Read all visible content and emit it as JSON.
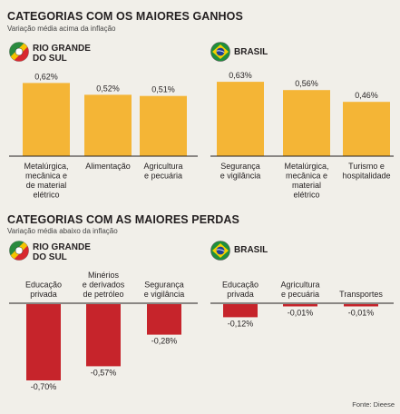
{
  "gains": {
    "title": "CATEGORIAS COM OS MAIORES GANHOS",
    "subtitle": "Variação média acima da inflação",
    "rs_region_line1": "RIO GRANDE",
    "rs_region_line2": "DO SUL",
    "br_region": "BRASIL"
  },
  "losses": {
    "title": "CATEGORIAS COM AS MAIORES PERDAS",
    "subtitle": "Variação média abaixo da inflação",
    "rs_region_line1": "RIO GRANDE",
    "rs_region_line2": "DO SUL",
    "br_region": "BRASIL"
  },
  "source": "Fonte: Dieese",
  "colors": {
    "gain_bar": "#f4b536",
    "loss_bar": "#c6242b"
  },
  "chart_data": [
    {
      "type": "bar",
      "group": "gains-rs",
      "title": "CATEGORIAS COM OS MAIORES GANHOS",
      "categories": [
        [
          "Metalúrgica,",
          "mecânica e",
          "de material",
          "elétrico"
        ],
        [
          "Alimentação"
        ],
        [
          "Agricultura",
          "e pecuária"
        ]
      ],
      "values": [
        0.62,
        0.52,
        0.51
      ],
      "labels": [
        "0,62%",
        "0,52%",
        "0,51%"
      ]
    },
    {
      "type": "bar",
      "group": "gains-br",
      "categories": [
        [
          "Segurança",
          "e vigilância"
        ],
        [
          "Metalúrgica,",
          "mecânica e",
          "material",
          "elétrico"
        ],
        [
          "Turismo e",
          "hospitalidade"
        ]
      ],
      "values": [
        0.63,
        0.56,
        0.46
      ],
      "labels": [
        "0,63%",
        "0,56%",
        "0,46%"
      ]
    },
    {
      "type": "bar",
      "group": "losses-rs",
      "title": "CATEGORIAS COM AS MAIORES PERDAS",
      "categories": [
        [
          "Educação",
          "privada"
        ],
        [
          "Minérios",
          "e derivados",
          "de petróleo"
        ],
        [
          "Segurança",
          "e vigilância"
        ]
      ],
      "values": [
        -0.7,
        -0.57,
        -0.28
      ],
      "labels": [
        "-0,70%",
        "-0,57%",
        "-0,28%"
      ]
    },
    {
      "type": "bar",
      "group": "losses-br",
      "categories": [
        [
          "Educação",
          "privada"
        ],
        [
          "Agricultura",
          "e pecuária"
        ],
        [
          "Transportes"
        ]
      ],
      "values": [
        -0.12,
        -0.01,
        -0.01
      ],
      "labels": [
        "-0,12%",
        "-0,01%",
        "-0,01%"
      ]
    }
  ]
}
